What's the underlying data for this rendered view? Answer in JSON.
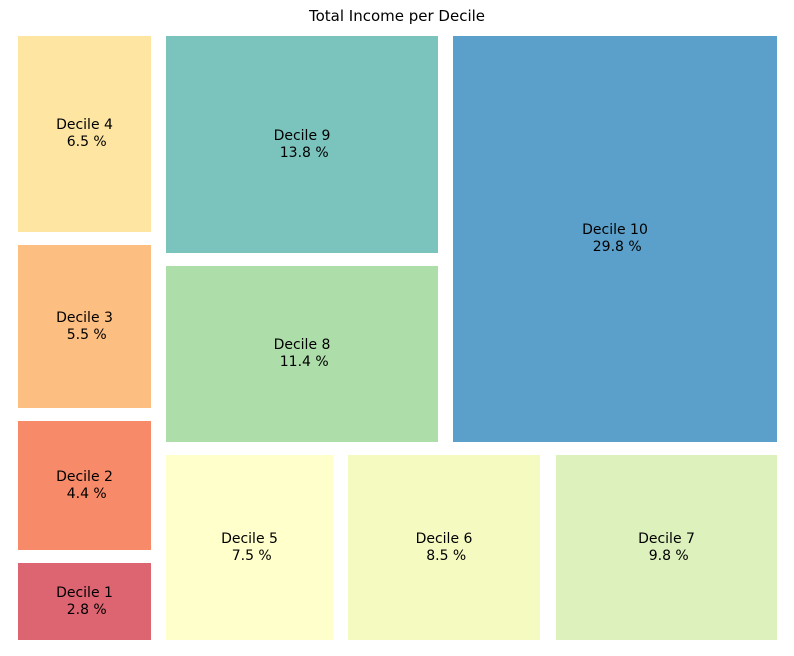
{
  "chart_data": {
    "type": "treemap",
    "title": "Total Income per Decile",
    "unit": "%",
    "tiles": [
      {
        "label": "Decile 1",
        "value": 2.8,
        "color": "#d53e4f"
      },
      {
        "label": "Decile 2",
        "value": 4.4,
        "color": "#f46d43"
      },
      {
        "label": "Decile 3",
        "value": 5.5,
        "color": "#fdae61"
      },
      {
        "label": "Decile 4",
        "value": 6.5,
        "color": "#fee08b"
      },
      {
        "label": "Decile 5",
        "value": 7.5,
        "color": "#ffffbf"
      },
      {
        "label": "Decile 6",
        "value": 8.5,
        "color": "#f2f9b0"
      },
      {
        "label": "Decile 7",
        "value": 9.8,
        "color": "#d4edad"
      },
      {
        "label": "Decile 8",
        "value": 11.4,
        "color": "#99d594"
      },
      {
        "label": "Decile 9",
        "value": 13.8,
        "color": "#5ab4ac"
      },
      {
        "label": "Decile 10",
        "value": 29.8,
        "color": "#3288bd"
      }
    ],
    "tile_text": [
      "Decile 1\n 2.8 %",
      "Decile 2\n 4.4 %",
      "Decile 3\n 5.5 %",
      "Decile 4\n 6.5 %",
      "Decile 5\n 7.5 %",
      "Decile 6\n 8.5 %",
      "Decile 7\n 9.8 %",
      "Decile 8\n 11.4 %",
      "Decile 9\n 13.8 %",
      "Decile 10\n 29.8 %"
    ]
  }
}
